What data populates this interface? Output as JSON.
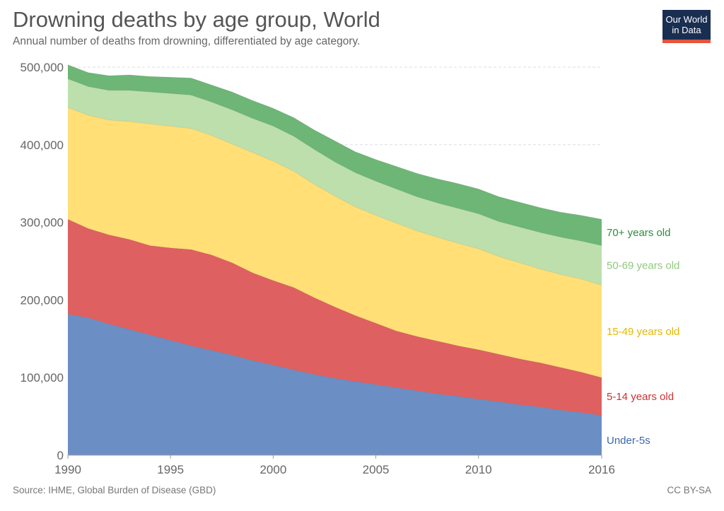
{
  "header": {
    "title": "Drowning deaths by age group, World",
    "subtitle": "Annual number of deaths from drowning, differentiated by age category."
  },
  "logo": {
    "line1": "Our World",
    "line2": "in Data"
  },
  "footer": {
    "source": "Source: IHME, Global Burden of Disease (GBD)",
    "license": "CC BY-SA"
  },
  "colors": {
    "under5": "#6b8ec4",
    "age5_14": "#df6060",
    "age15_49": "#ffdf76",
    "age50_69": "#bddfac",
    "age70plus": "#6db676",
    "label_under5": "#3d68a8",
    "label_5_14": "#cc3333",
    "label_15_49": "#e6b800",
    "label_50_69": "#8fc97d",
    "label_70plus": "#2e8b3e",
    "grid": "#dddddd",
    "logo_bg": "#1a2e52",
    "logo_bar": "#e5553b"
  },
  "chart_data": {
    "type": "area",
    "stacked": true,
    "x": [
      1990,
      1991,
      1992,
      1993,
      1994,
      1995,
      1996,
      1997,
      1998,
      1999,
      2000,
      2001,
      2002,
      2003,
      2004,
      2005,
      2006,
      2007,
      2008,
      2009,
      2010,
      2011,
      2012,
      2013,
      2014,
      2015,
      2016
    ],
    "xlim": [
      1990,
      2016
    ],
    "ylim": [
      0,
      500000
    ],
    "x_ticks": [
      "1990",
      "1995",
      "2000",
      "2005",
      "2010",
      "2016"
    ],
    "x_tick_values": [
      1990,
      1995,
      2000,
      2005,
      2010,
      2016
    ],
    "y_ticks": [
      "0",
      "100,000",
      "200,000",
      "300,000",
      "400,000",
      "500,000"
    ],
    "y_tick_values": [
      0,
      100000,
      200000,
      300000,
      400000,
      500000
    ],
    "grid": true,
    "legend": "right-end labels",
    "series": [
      {
        "name": "Under-5s",
        "key": "under5",
        "values": [
          182000,
          177000,
          169000,
          162000,
          155000,
          148000,
          141000,
          135000,
          129000,
          122000,
          116000,
          110000,
          104000,
          99000,
          95000,
          91000,
          87000,
          83000,
          79000,
          76000,
          72000,
          69000,
          65000,
          62000,
          58000,
          55000,
          51000
        ]
      },
      {
        "name": "5-14 years old",
        "key": "age5_14",
        "values": [
          122000,
          115000,
          115000,
          116000,
          115000,
          119000,
          124000,
          123000,
          119000,
          113000,
          109000,
          106000,
          99000,
          92000,
          85000,
          79000,
          73000,
          70000,
          68000,
          65000,
          64000,
          61000,
          59000,
          57000,
          55000,
          52000,
          49000
        ]
      },
      {
        "name": "15-49 years old",
        "key": "age15_49",
        "values": [
          144000,
          146000,
          148000,
          152000,
          157000,
          157000,
          156000,
          154000,
          153000,
          155000,
          154000,
          150000,
          146000,
          143000,
          140000,
          139000,
          139000,
          136000,
          134000,
          132000,
          130000,
          126000,
          124000,
          121000,
          120000,
          120000,
          119000
        ]
      },
      {
        "name": "50-69 years old",
        "key": "age50_69",
        "values": [
          37000,
          37000,
          38000,
          40000,
          41000,
          42000,
          43000,
          43000,
          44000,
          44000,
          45000,
          45000,
          45000,
          44000,
          44000,
          44000,
          44000,
          44000,
          44000,
          45000,
          45000,
          45000,
          46000,
          47000,
          48000,
          49000,
          51000
        ]
      },
      {
        "name": "70+ years old",
        "key": "age70plus",
        "values": [
          18000,
          18000,
          19000,
          20000,
          20000,
          21000,
          22000,
          22000,
          23000,
          23000,
          23000,
          24000,
          25000,
          27000,
          27000,
          28000,
          29000,
          30000,
          31000,
          32000,
          32000,
          32000,
          32000,
          32000,
          32000,
          33000,
          34000
        ]
      }
    ]
  }
}
